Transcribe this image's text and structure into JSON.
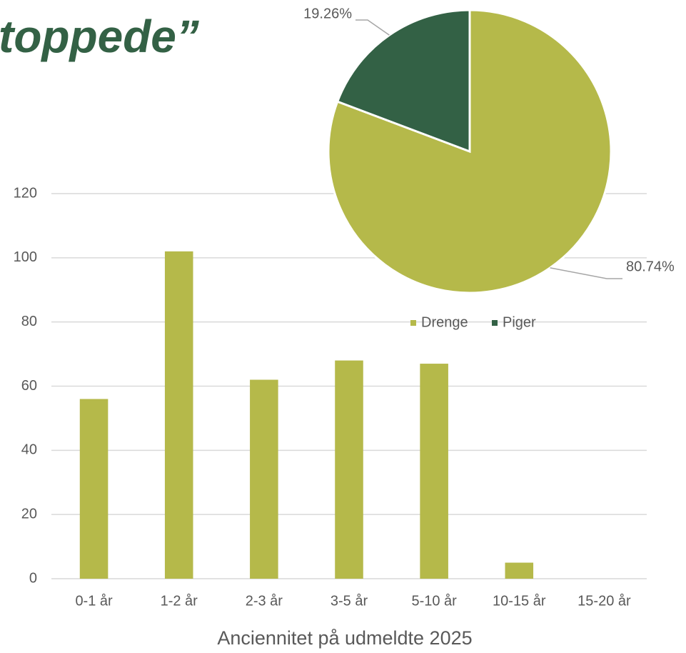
{
  "heading": "toppede”",
  "chart_data": [
    {
      "type": "bar",
      "x_label": "Anciennitet på udmeldte 2025",
      "categories": [
        "0-1 år",
        "1-2 år",
        "2-3 år",
        "3-5 år",
        "5-10 år",
        "10-15 år",
        "15-20 år"
      ],
      "values": [
        56,
        102,
        62,
        68,
        67,
        5,
        0
      ],
      "color": "#b5b94a",
      "ylim": [
        0,
        120
      ],
      "yticks": [
        0,
        20,
        40,
        60,
        80,
        100,
        120
      ],
      "grid": true
    },
    {
      "type": "pie",
      "categories": [
        "Drenge",
        "Piger"
      ],
      "values": [
        80.74,
        19.26
      ],
      "value_labels": [
        "80.74%",
        "19.26%"
      ],
      "colors": [
        "#b5b94a",
        "#336145"
      ],
      "legend": "bottom"
    }
  ]
}
